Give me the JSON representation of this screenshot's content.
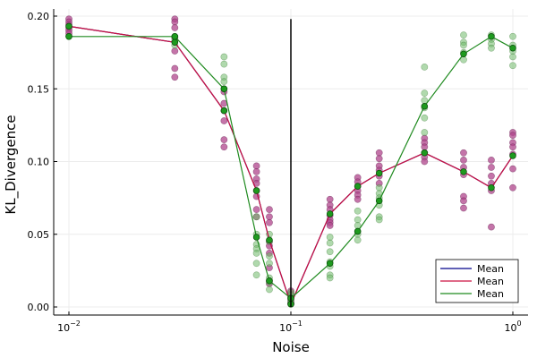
{
  "chart_data": {
    "type": "scatter",
    "title": "",
    "xlabel": "Noise",
    "ylabel": "KL_Divergence",
    "x_scale": "log10",
    "xlim": [
      0.01,
      1.0
    ],
    "ylim": [
      -0.005,
      0.202
    ],
    "x_ticks": [
      {
        "value": 0.01,
        "base": "10",
        "exp": "−2"
      },
      {
        "value": 0.1,
        "base": "10",
        "exp": "−1"
      },
      {
        "value": 1.0,
        "base": "10",
        "exp": "0"
      }
    ],
    "y_ticks": [
      {
        "value": 0.0,
        "label": "0.00"
      },
      {
        "value": 0.05,
        "label": "0.05"
      },
      {
        "value": 0.1,
        "label": "0.10"
      },
      {
        "value": 0.15,
        "label": "0.15"
      },
      {
        "value": 0.2,
        "label": "0.20"
      }
    ],
    "grid": true,
    "legend_position": "bottom-right",
    "colors": {
      "mean_blue": "#00008b",
      "mean_red": "#cc1040",
      "mean_green": "#1f8a1f",
      "points_magenta": "#b0458c",
      "points_green": "#6fba6a"
    },
    "vline": {
      "x": 0.1,
      "y_from": 0.0,
      "y_to": 0.198,
      "color": "#000000"
    },
    "x": [
      0.01,
      0.03,
      0.05,
      0.07,
      0.08,
      0.1,
      0.15,
      0.2,
      0.25,
      0.4,
      0.6,
      0.8,
      1.0
    ],
    "series": [
      {
        "name": "Mean",
        "kind": "line",
        "color": "#00008b",
        "values": [
          0.193,
          0.182,
          0.135,
          0.08,
          0.046,
          0.002,
          0.064,
          0.083,
          0.092,
          0.106,
          0.093,
          0.082,
          0.104
        ]
      },
      {
        "name": "Mean",
        "kind": "line",
        "color": "#cc1040",
        "markers": "green",
        "values": [
          0.193,
          0.182,
          0.135,
          0.08,
          0.046,
          0.002,
          0.064,
          0.083,
          0.092,
          0.106,
          0.093,
          0.082,
          0.104
        ]
      },
      {
        "name": "Mean",
        "kind": "line",
        "color": "#1f8a1f",
        "markers": "green",
        "values": [
          0.186,
          0.186,
          0.15,
          0.048,
          0.018,
          0.006,
          0.03,
          0.052,
          0.073,
          0.138,
          0.174,
          0.186,
          0.178
        ]
      }
    ],
    "scatter_magenta": [
      {
        "x": 0.01,
        "y": [
          0.198,
          0.196,
          0.194,
          0.192,
          0.19,
          0.188
        ]
      },
      {
        "x": 0.03,
        "y": [
          0.198,
          0.196,
          0.192,
          0.185,
          0.176,
          0.164,
          0.158
        ]
      },
      {
        "x": 0.05,
        "y": [
          0.148,
          0.14,
          0.135,
          0.128,
          0.115,
          0.11
        ]
      },
      {
        "x": 0.07,
        "y": [
          0.097,
          0.093,
          0.088,
          0.085,
          0.08,
          0.076,
          0.067,
          0.062
        ]
      },
      {
        "x": 0.08,
        "y": [
          0.067,
          0.062,
          0.058,
          0.045,
          0.042,
          0.037,
          0.027,
          0.018,
          0.016
        ]
      },
      {
        "x": 0.1,
        "y": [
          0.011,
          0.009,
          0.007,
          0.005,
          0.003,
          0.002
        ]
      },
      {
        "x": 0.15,
        "y": [
          0.074,
          0.07,
          0.067,
          0.063,
          0.06,
          0.058,
          0.056
        ]
      },
      {
        "x": 0.2,
        "y": [
          0.089,
          0.086,
          0.083,
          0.08,
          0.077,
          0.074
        ]
      },
      {
        "x": 0.25,
        "y": [
          0.106,
          0.102,
          0.097,
          0.094,
          0.09,
          0.085
        ]
      },
      {
        "x": 0.4,
        "y": [
          0.116,
          0.113,
          0.11,
          0.106,
          0.103,
          0.1
        ]
      },
      {
        "x": 0.6,
        "y": [
          0.106,
          0.101,
          0.096,
          0.091,
          0.076,
          0.073,
          0.068
        ]
      },
      {
        "x": 0.8,
        "y": [
          0.101,
          0.096,
          0.09,
          0.085,
          0.08,
          0.055
        ]
      },
      {
        "x": 1.0,
        "y": [
          0.12,
          0.118,
          0.113,
          0.11,
          0.105,
          0.095,
          0.082
        ]
      }
    ],
    "scatter_green": [
      {
        "x": 0.01,
        "y": [
          0.186
        ]
      },
      {
        "x": 0.03,
        "y": [
          0.186,
          0.183,
          0.18
        ]
      },
      {
        "x": 0.05,
        "y": [
          0.172,
          0.167,
          0.158,
          0.155,
          0.15
        ]
      },
      {
        "x": 0.07,
        "y": [
          0.062,
          0.05,
          0.043,
          0.04,
          0.037,
          0.03,
          0.022
        ]
      },
      {
        "x": 0.08,
        "y": [
          0.05,
          0.045,
          0.035,
          0.03,
          0.02,
          0.017,
          0.012
        ]
      },
      {
        "x": 0.1,
        "y": [
          0.01,
          0.008,
          0.006,
          0.004,
          0.002
        ]
      },
      {
        "x": 0.15,
        "y": [
          0.048,
          0.044,
          0.038,
          0.031,
          0.028,
          0.022,
          0.02
        ]
      },
      {
        "x": 0.2,
        "y": [
          0.066,
          0.06,
          0.056,
          0.052,
          0.05,
          0.046
        ]
      },
      {
        "x": 0.25,
        "y": [
          0.082,
          0.078,
          0.075,
          0.07,
          0.062,
          0.06
        ]
      },
      {
        "x": 0.4,
        "y": [
          0.165,
          0.147,
          0.142,
          0.137,
          0.13,
          0.12
        ]
      },
      {
        "x": 0.6,
        "y": [
          0.187,
          0.182,
          0.18,
          0.175,
          0.17
        ]
      },
      {
        "x": 0.8,
        "y": [
          0.187,
          0.184,
          0.181,
          0.178
        ]
      },
      {
        "x": 1.0,
        "y": [
          0.186,
          0.18,
          0.176,
          0.172,
          0.166
        ]
      }
    ],
    "legend": [
      "Mean",
      "Mean",
      "Mean"
    ]
  }
}
